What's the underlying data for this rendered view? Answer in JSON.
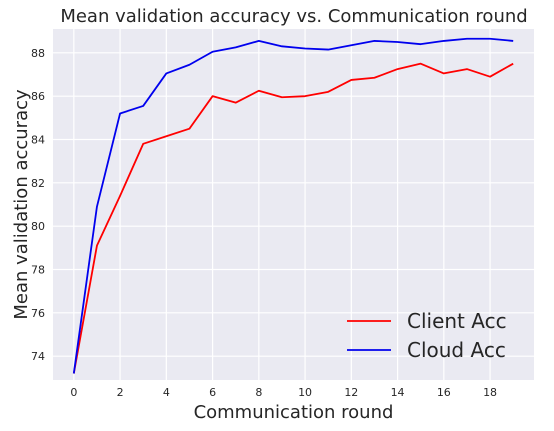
{
  "chart_data": {
    "type": "line",
    "title": "Mean validation accuracy vs. Communication round",
    "xlabel": "Communication round",
    "ylabel": "Mean validation accuracy",
    "xlim": [
      -0.9,
      19.9
    ],
    "ylim": [
      72.9,
      89.1
    ],
    "xticks": [
      0,
      2,
      4,
      6,
      8,
      10,
      12,
      14,
      16,
      18
    ],
    "yticks": [
      74,
      76,
      78,
      80,
      82,
      84,
      86,
      88
    ],
    "grid": true,
    "legend": "bottom-right",
    "background": "#eaeaf2",
    "series": [
      {
        "name": "Client Acc",
        "color": "#ff0000",
        "x": [
          0,
          1,
          2,
          3,
          4,
          5,
          6,
          7,
          8,
          9,
          10,
          11,
          12,
          13,
          14,
          15,
          16,
          17,
          18,
          19
        ],
        "values": [
          73.2,
          79.1,
          81.4,
          83.8,
          84.15,
          84.5,
          86.0,
          85.7,
          86.25,
          85.95,
          86.0,
          86.2,
          86.75,
          86.85,
          87.25,
          87.5,
          87.05,
          87.25,
          86.9,
          87.5
        ]
      },
      {
        "name": "Cloud Acc",
        "color": "#0000ee",
        "x": [
          0,
          1,
          2,
          3,
          4,
          5,
          6,
          7,
          8,
          9,
          10,
          11,
          12,
          13,
          14,
          15,
          16,
          17,
          18,
          19
        ],
        "values": [
          73.2,
          80.9,
          85.2,
          85.55,
          87.05,
          87.45,
          88.05,
          88.25,
          88.55,
          88.3,
          88.2,
          88.15,
          88.35,
          88.55,
          88.5,
          88.4,
          88.55,
          88.65,
          88.65,
          88.55
        ]
      }
    ]
  }
}
